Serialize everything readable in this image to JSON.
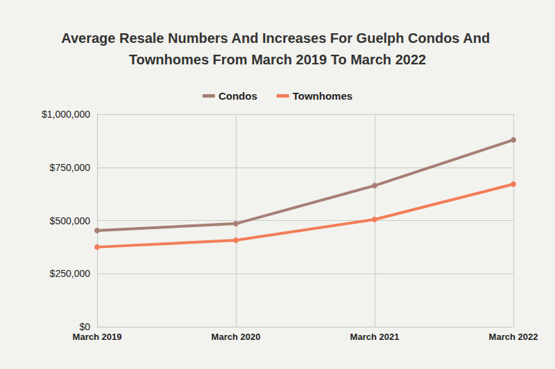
{
  "chart_data": {
    "type": "line",
    "title": "Average Resale Numbers And Increases For Guelph Condos And Townhomes From March 2019 To March 2022",
    "categories": [
      "March 2019",
      "March 2020",
      "March 2021",
      "March 2022"
    ],
    "series": [
      {
        "name": "Condos",
        "color": "#a57f74",
        "values": [
          453000,
          485000,
          664000,
          879000
        ],
        "marker": "circle"
      },
      {
        "name": "Townhomes",
        "color": "#f27d57",
        "values": [
          375000,
          407000,
          505000,
          671000
        ],
        "marker": "circle"
      }
    ],
    "ylim": [
      0,
      1000000
    ],
    "yticks": [
      {
        "value": 0,
        "label": "$0"
      },
      {
        "value": 250000,
        "label": "$250,000"
      },
      {
        "value": 500000,
        "label": "$500,000"
      },
      {
        "value": 750000,
        "label": "$750,000"
      },
      {
        "value": 1000000,
        "label": "$1,000,000"
      }
    ],
    "grid": true,
    "legend": "top"
  }
}
